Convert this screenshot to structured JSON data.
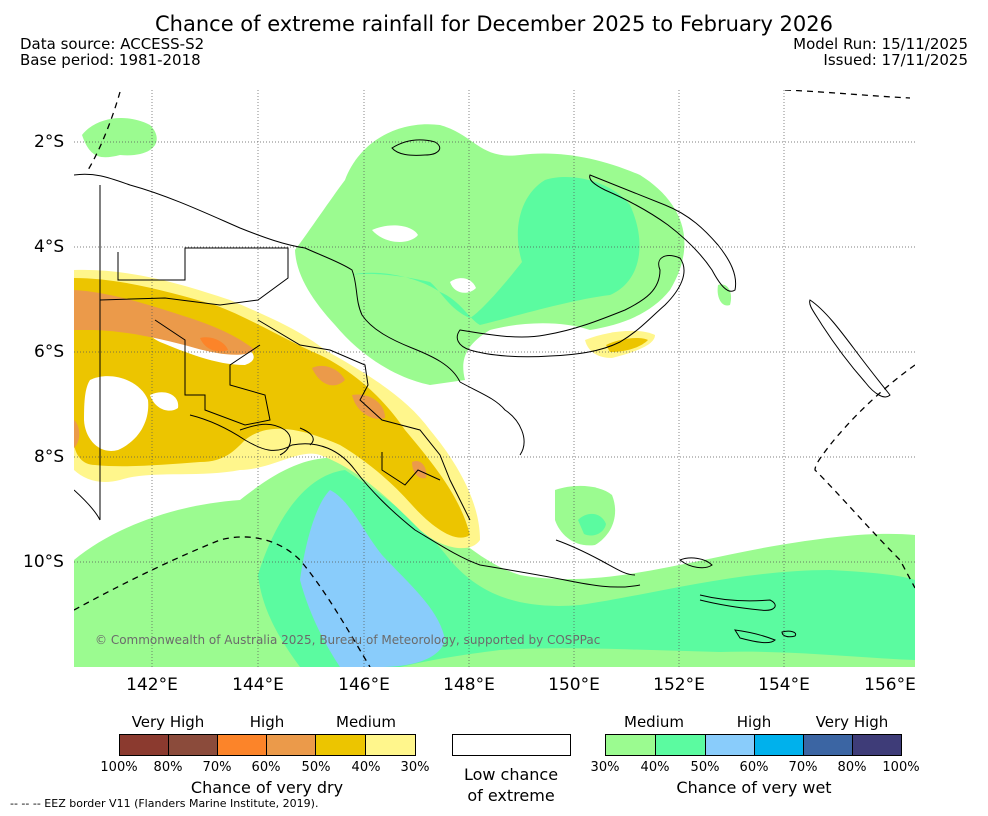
{
  "title": "Chance of extreme rainfall for December 2025 to February 2026",
  "meta": {
    "data_source": "Data source: ACCESS-S2",
    "base_period": "Base period: 1981-2018",
    "model_run": "Model Run: 15/11/2025",
    "issued": "Issued: 17/11/2025"
  },
  "map": {
    "lat_labels": [
      "2°S",
      "4°S",
      "6°S",
      "8°S",
      "10°S"
    ],
    "lon_labels": [
      "142°E",
      "144°E",
      "146°E",
      "148°E",
      "150°E",
      "152°E",
      "154°E",
      "156°E"
    ],
    "copyright": "© Commonwealth of Australia 2025, Bureau of Meteorology, supported by COSPPac"
  },
  "legend": {
    "dry": {
      "categories": [
        "Very High",
        "High",
        "Medium"
      ],
      "ticks": [
        "100%",
        "80%",
        "70%",
        "60%",
        "50%",
        "40%",
        "30%"
      ],
      "colors": [
        "#8b3a2f",
        "#8b4b3b",
        "#fc8429",
        "#eb9a4a",
        "#ecc500",
        "#fff68c"
      ],
      "caption": "Chance of very dry"
    },
    "neutral": {
      "caption_line1": "Low chance",
      "caption_line2": "of extreme",
      "color": "#ffffff"
    },
    "wet": {
      "categories": [
        "Medium",
        "High",
        "Very High"
      ],
      "ticks": [
        "30%",
        "40%",
        "50%",
        "60%",
        "70%",
        "80%",
        "100%"
      ],
      "colors": [
        "#9bfb90",
        "#5bfba0",
        "#89ccfb",
        "#00b1ec",
        "#3b65a3",
        "#3e3c78"
      ],
      "caption": "Chance of very wet"
    },
    "eez_note": "--  --  -- EEZ border V11 (Flanders Marine Institute, 2019)."
  }
}
